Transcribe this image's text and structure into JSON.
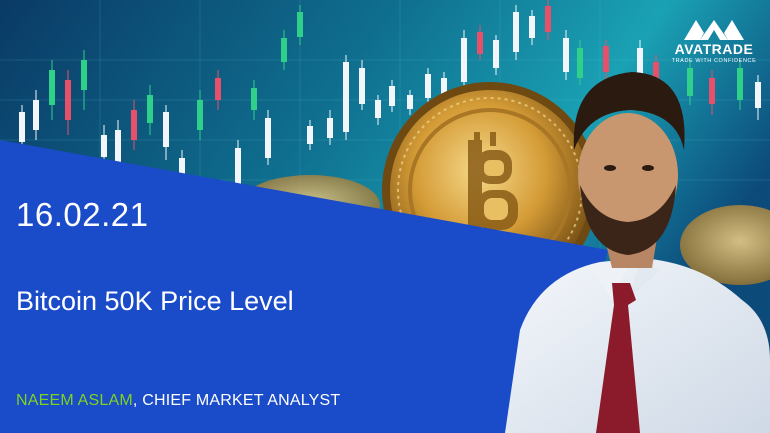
{
  "banner": {
    "date": "16.02.21",
    "headline": "Bitcoin 50K Price Level",
    "author_name": "NAEEM ASLAM",
    "author_separator": ",",
    "author_title": " CHIEF MARKET ANALYST"
  },
  "logo": {
    "brand": "AVATRADE",
    "tagline": "TRADE WITH CONFIDENCE"
  },
  "colors": {
    "blue_panel": "#1a4bc9",
    "author_name": "#7ed321",
    "candle_green": "#2ed08a",
    "candle_red": "#e8506a",
    "candle_white": "#f2f6fb"
  },
  "icons": {
    "logo_mark": "avatrade-triangles-icon",
    "coin": "bitcoin-coin-icon"
  }
}
